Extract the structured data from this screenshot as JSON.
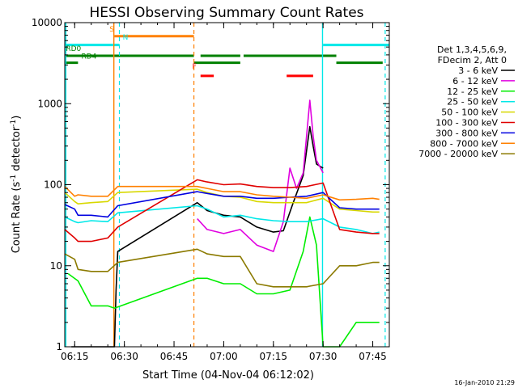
{
  "chart_data": {
    "type": "line",
    "title": "HESSI Observing Summary Count Rates",
    "xlabel": "Start Time (04-Nov-04 06:12:02)",
    "ylabel_main": "Count Rate (s",
    "ylabel_sup1": "-1",
    "ylabel_mid": " detector",
    "ylabel_sup2": "-1",
    "ylabel_end": ")",
    "y_scale": "log",
    "xlim": [
      "06:12",
      "07:50"
    ],
    "ylim": [
      1,
      10000
    ],
    "x_ticks": [
      "06:15",
      "06:30",
      "06:45",
      "07:00",
      "07:15",
      "07:30",
      "07:45"
    ],
    "y_ticks": [
      "1",
      "10",
      "100",
      "1000",
      "10000"
    ],
    "legend_header": [
      "Det 1,3,4,5,6,9,",
      "FDecim 2, Att 0"
    ],
    "legend_position": "right",
    "series": [
      {
        "name": "3 - 6 keV",
        "color": "#000000",
        "x": [
          "06:14",
          "06:20",
          "06:27",
          "06:27:30",
          "06:28",
          "06:52",
          "06:55",
          "07:00",
          "07:05",
          "07:10",
          "07:15",
          "07:18",
          "07:21",
          "07:24",
          "07:26",
          "07:27",
          "07:28",
          "07:30"
        ],
        "y": [
          1,
          1,
          1,
          5,
          15,
          60,
          48,
          42,
          40,
          30,
          26,
          27,
          60,
          130,
          520,
          300,
          180,
          160
        ]
      },
      {
        "name": "6 - 12 keV",
        "color": "#e000e0",
        "x": [
          "06:52",
          "06:55",
          "07:00",
          "07:05",
          "07:10",
          "07:15",
          "07:18",
          "07:20",
          "07:22",
          "07:24",
          "07:26",
          "07:27",
          "07:28",
          "07:30"
        ],
        "y": [
          38,
          28,
          25,
          28,
          18,
          15,
          35,
          160,
          90,
          140,
          1100,
          400,
          200,
          140
        ]
      },
      {
        "name": "12 - 25 keV",
        "color": "#00ee00",
        "x": [
          "06:13",
          "06:16",
          "06:20",
          "06:25",
          "06:27",
          "06:52",
          "06:55",
          "07:00",
          "07:05",
          "07:10",
          "07:15",
          "07:20",
          "07:24",
          "07:26",
          "07:28",
          "07:30",
          "07:35",
          "07:40",
          "07:45",
          "07:47"
        ],
        "y": [
          8,
          6.5,
          3.2,
          3.2,
          3,
          7,
          7,
          6,
          6,
          4.5,
          4.5,
          5,
          15,
          40,
          18,
          1,
          1,
          2,
          2,
          2
        ]
      },
      {
        "name": "25 - 50 keV",
        "color": "#00e8e8",
        "x": [
          "06:12",
          "06:15",
          "06:16",
          "06:20",
          "06:25",
          "06:28",
          "06:52",
          "06:55",
          "07:00",
          "07:05",
          "07:10",
          "07:15",
          "07:20",
          "07:25",
          "07:30",
          "07:35",
          "07:40",
          "07:45",
          "07:47"
        ],
        "y": [
          40,
          35,
          34,
          36,
          35,
          45,
          55,
          50,
          40,
          42,
          38,
          36,
          35,
          35,
          38,
          30,
          28,
          25,
          26
        ]
      },
      {
        "name": "50 - 100 keV",
        "color": "#d8d800",
        "x": [
          "06:12",
          "06:15",
          "06:16",
          "06:20",
          "06:25",
          "06:28",
          "06:52",
          "06:55",
          "07:00",
          "07:05",
          "07:10",
          "07:15",
          "07:20",
          "07:25",
          "07:30",
          "07:35",
          "07:40",
          "07:45",
          "07:47"
        ],
        "y": [
          80,
          62,
          58,
          60,
          62,
          80,
          88,
          80,
          72,
          70,
          62,
          60,
          60,
          60,
          68,
          50,
          48,
          46,
          46
        ]
      },
      {
        "name": "100 - 300 keV",
        "color": "#e00000",
        "x": [
          "06:12",
          "06:15",
          "06:16",
          "06:20",
          "06:25",
          "06:28",
          "06:52",
          "06:55",
          "07:00",
          "07:05",
          "07:10",
          "07:15",
          "07:20",
          "07:25",
          "07:30",
          "07:35",
          "07:40",
          "07:45",
          "07:47"
        ],
        "y": [
          28,
          22,
          20,
          20,
          22,
          30,
          115,
          108,
          100,
          102,
          95,
          92,
          92,
          95,
          105,
          28,
          26,
          25,
          25
        ]
      },
      {
        "name": "300 - 800 keV",
        "color": "#0000e0",
        "x": [
          "06:12",
          "06:15",
          "06:16",
          "06:20",
          "06:25",
          "06:28",
          "06:52",
          "06:55",
          "07:00",
          "07:05",
          "07:10",
          "07:15",
          "07:20",
          "07:25",
          "07:30",
          "07:35",
          "07:40",
          "07:45",
          "07:47"
        ],
        "y": [
          57,
          50,
          42,
          42,
          40,
          55,
          82,
          78,
          72,
          72,
          68,
          68,
          70,
          72,
          80,
          52,
          50,
          50,
          50
        ]
      },
      {
        "name": "800 - 7000 keV",
        "color": "#ff8000",
        "x": [
          "06:12",
          "06:15",
          "06:16",
          "06:20",
          "06:25",
          "06:28",
          "06:52",
          "06:55",
          "07:00",
          "07:05",
          "07:10",
          "07:15",
          "07:20",
          "07:25",
          "07:30",
          "07:35",
          "07:40",
          "07:45",
          "07:47"
        ],
        "y": [
          95,
          72,
          75,
          72,
          72,
          95,
          95,
          90,
          82,
          82,
          75,
          72,
          70,
          68,
          75,
          65,
          66,
          68,
          66
        ]
      },
      {
        "name": "7000 - 20000 keV",
        "color": "#8b7a00",
        "x": [
          "06:12",
          "06:15",
          "06:16",
          "06:20",
          "06:25",
          "06:28",
          "06:52",
          "06:55",
          "07:00",
          "07:05",
          "07:10",
          "07:15",
          "07:20",
          "07:25",
          "07:30",
          "07:35",
          "07:40",
          "07:45",
          "07:47"
        ],
        "y": [
          14,
          12,
          9,
          8.5,
          8.5,
          11,
          16,
          14,
          13,
          13,
          6,
          5.5,
          5.5,
          5.5,
          6,
          10,
          10,
          11,
          11
        ]
      }
    ],
    "annotations": {
      "flag_labels": [
        "S",
        "N",
        "F",
        "RD0",
        "RD4"
      ]
    },
    "footer_date": "16-Jan-2010 21:29"
  }
}
